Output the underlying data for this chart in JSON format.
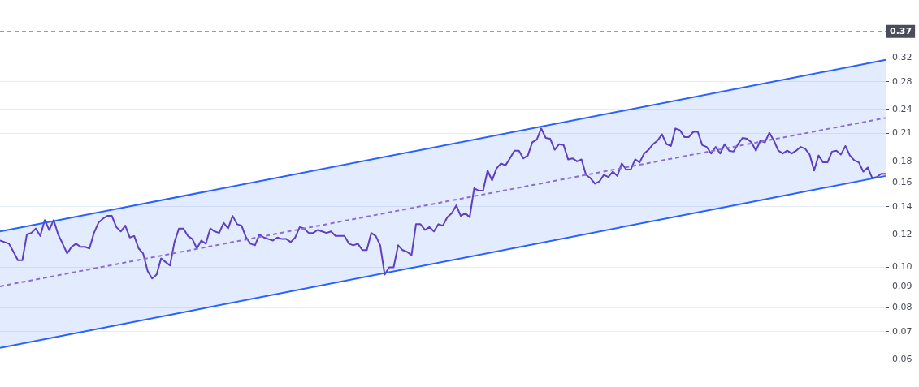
{
  "chart_data": {
    "type": "line",
    "log": "y",
    "grid": "y",
    "legend": false,
    "tick_labels": "y",
    "marker": "none",
    "categories": [
      null,
      null,
      null,
      null,
      null,
      null,
      null,
      null,
      null,
      null,
      null,
      null,
      null,
      null,
      null,
      null,
      null,
      null,
      null,
      null,
      null,
      null,
      null,
      null,
      null,
      null,
      null,
      null,
      null,
      null,
      null,
      null,
      null,
      null,
      null,
      null,
      null,
      null,
      null,
      null,
      null,
      null,
      null,
      null,
      null,
      null,
      null,
      null,
      null,
      null,
      null,
      null,
      null,
      null,
      null,
      null,
      null,
      null,
      null,
      null,
      null,
      null,
      null,
      null,
      null,
      null,
      null,
      null,
      null,
      null,
      null,
      null,
      null,
      null,
      null,
      null,
      null,
      null,
      null,
      null,
      null,
      null,
      null,
      null,
      null,
      null,
      null,
      null,
      null,
      null,
      null,
      null,
      null,
      null,
      null,
      null,
      null,
      null,
      null,
      null,
      null,
      null,
      null,
      null,
      null,
      null,
      null,
      null,
      null,
      null,
      null,
      null,
      null,
      null,
      null,
      null,
      null,
      null,
      null,
      null,
      null,
      null,
      null,
      null,
      null,
      null,
      null,
      null,
      null,
      null,
      null,
      null,
      null,
      null,
      null,
      null,
      null,
      null,
      null,
      null,
      null,
      null,
      null,
      null,
      null,
      null,
      null,
      null,
      null,
      null,
      null,
      null,
      null,
      null,
      null,
      null,
      null,
      null,
      null,
      null,
      null,
      null,
      null,
      null,
      null,
      null,
      null,
      null,
      null,
      null,
      null,
      null,
      null,
      null,
      null,
      null,
      null,
      null,
      null,
      null,
      null,
      null,
      null,
      null,
      null,
      null,
      null,
      null,
      null,
      null,
      null,
      null,
      null,
      null,
      null,
      null,
      null,
      null,
      null
    ],
    "ylim": [
      0.054,
      0.42
    ],
    "yticks": [
      0.06,
      0.07,
      0.08,
      0.09,
      {
        "value": 0.1,
        "label": "0.10"
      },
      0.12,
      0.14,
      0.16,
      0.18,
      0.21,
      0.24,
      0.28,
      0.32
    ],
    "ref_lines": [
      {
        "axis": "y",
        "value": 0.37,
        "label": "0.37",
        "color": "#787b86",
        "line_style": "dashed"
      }
    ],
    "series": [
      {
        "color": "#9c6fd0",
        "line_style": "dashed",
        "values": [
          0.09,
          null,
          null,
          null,
          null,
          null,
          null,
          null,
          null,
          null,
          null,
          null,
          null,
          null,
          null,
          null,
          null,
          null,
          null,
          null,
          null,
          null,
          null,
          null,
          null,
          null,
          null,
          null,
          null,
          null,
          null,
          null,
          null,
          null,
          null,
          null,
          null,
          null,
          null,
          null,
          null,
          null,
          null,
          null,
          null,
          null,
          null,
          null,
          null,
          null,
          null,
          null,
          null,
          null,
          null,
          null,
          null,
          null,
          null,
          null,
          null,
          null,
          null,
          null,
          null,
          null,
          null,
          null,
          null,
          null,
          null,
          null,
          null,
          null,
          null,
          null,
          null,
          null,
          null,
          null,
          null,
          null,
          null,
          null,
          null,
          null,
          null,
          null,
          null,
          null,
          null,
          null,
          null,
          null,
          null,
          null,
          null,
          null,
          null,
          null,
          null,
          null,
          null,
          null,
          null,
          null,
          null,
          null,
          null,
          null,
          null,
          null,
          null,
          null,
          null,
          null,
          null,
          null,
          null,
          null,
          null,
          null,
          null,
          null,
          null,
          null,
          null,
          null,
          null,
          null,
          null,
          null,
          null,
          null,
          null,
          null,
          null,
          null,
          null,
          null,
          null,
          null,
          null,
          null,
          null,
          null,
          null,
          null,
          null,
          null,
          null,
          null,
          null,
          null,
          null,
          null,
          null,
          null,
          null,
          null,
          null,
          null,
          null,
          null,
          null,
          null,
          null,
          null,
          null,
          null,
          null,
          null,
          null,
          null,
          null,
          null,
          null,
          null,
          null,
          null,
          null,
          null,
          null,
          null,
          null,
          null,
          null,
          null,
          null,
          null,
          null,
          null,
          null,
          null,
          null,
          null,
          null,
          null,
          0.229
        ],
        "lower": [
          0.064,
          null,
          null,
          null,
          null,
          null,
          null,
          null,
          null,
          null,
          null,
          null,
          null,
          null,
          null,
          null,
          null,
          null,
          null,
          null,
          null,
          null,
          null,
          null,
          null,
          null,
          null,
          null,
          null,
          null,
          null,
          null,
          null,
          null,
          null,
          null,
          null,
          null,
          null,
          null,
          null,
          null,
          null,
          null,
          null,
          null,
          null,
          null,
          null,
          null,
          null,
          null,
          null,
          null,
          null,
          null,
          null,
          null,
          null,
          null,
          null,
          null,
          null,
          null,
          null,
          null,
          null,
          null,
          null,
          null,
          null,
          null,
          null,
          null,
          null,
          null,
          null,
          null,
          null,
          null,
          null,
          null,
          null,
          null,
          null,
          null,
          null,
          null,
          null,
          null,
          null,
          null,
          null,
          null,
          null,
          null,
          null,
          null,
          null,
          null,
          null,
          null,
          null,
          null,
          null,
          null,
          null,
          null,
          null,
          null,
          null,
          null,
          null,
          null,
          null,
          null,
          null,
          null,
          null,
          null,
          null,
          null,
          null,
          null,
          null,
          null,
          null,
          null,
          null,
          null,
          null,
          null,
          null,
          null,
          null,
          null,
          null,
          null,
          null,
          null,
          null,
          null,
          null,
          null,
          null,
          null,
          null,
          null,
          null,
          null,
          null,
          null,
          null,
          null,
          null,
          null,
          null,
          null,
          null,
          null,
          null,
          null,
          null,
          null,
          null,
          null,
          null,
          null,
          null,
          null,
          null,
          null,
          null,
          null,
          null,
          null,
          null,
          null,
          null,
          null,
          null,
          null,
          null,
          null,
          null,
          null,
          null,
          null,
          null,
          null,
          null,
          null,
          null,
          null,
          null,
          null,
          null,
          null,
          0.166
        ],
        "upper": [
          0.122,
          null,
          null,
          null,
          null,
          null,
          null,
          null,
          null,
          null,
          null,
          null,
          null,
          null,
          null,
          null,
          null,
          null,
          null,
          null,
          null,
          null,
          null,
          null,
          null,
          null,
          null,
          null,
          null,
          null,
          null,
          null,
          null,
          null,
          null,
          null,
          null,
          null,
          null,
          null,
          null,
          null,
          null,
          null,
          null,
          null,
          null,
          null,
          null,
          null,
          null,
          null,
          null,
          null,
          null,
          null,
          null,
          null,
          null,
          null,
          null,
          null,
          null,
          null,
          null,
          null,
          null,
          null,
          null,
          null,
          null,
          null,
          null,
          null,
          null,
          null,
          null,
          null,
          null,
          null,
          null,
          null,
          null,
          null,
          null,
          null,
          null,
          null,
          null,
          null,
          null,
          null,
          null,
          null,
          null,
          null,
          null,
          null,
          null,
          null,
          null,
          null,
          null,
          null,
          null,
          null,
          null,
          null,
          null,
          null,
          null,
          null,
          null,
          null,
          null,
          null,
          null,
          null,
          null,
          null,
          null,
          null,
          null,
          null,
          null,
          null,
          null,
          null,
          null,
          null,
          null,
          null,
          null,
          null,
          null,
          null,
          null,
          null,
          null,
          null,
          null,
          null,
          null,
          null,
          null,
          null,
          null,
          null,
          null,
          null,
          null,
          null,
          null,
          null,
          null,
          null,
          null,
          null,
          null,
          null,
          null,
          null,
          null,
          null,
          null,
          null,
          null,
          null,
          null,
          null,
          null,
          null,
          null,
          null,
          null,
          null,
          null,
          null,
          null,
          null,
          null,
          null,
          null,
          null,
          null,
          null,
          null,
          null,
          null,
          null,
          null,
          null,
          null,
          null,
          null,
          null,
          null,
          null,
          0.316
        ]
      },
      {
        "color": "#2962ff",
        "line_style": "solid",
        "values": [
          0.122,
          null,
          null,
          null,
          null,
          null,
          null,
          null,
          null,
          null,
          null,
          null,
          null,
          null,
          null,
          null,
          null,
          null,
          null,
          null,
          null,
          null,
          null,
          null,
          null,
          null,
          null,
          null,
          null,
          null,
          null,
          null,
          null,
          null,
          null,
          null,
          null,
          null,
          null,
          null,
          null,
          null,
          null,
          null,
          null,
          null,
          null,
          null,
          null,
          null,
          null,
          null,
          null,
          null,
          null,
          null,
          null,
          null,
          null,
          null,
          null,
          null,
          null,
          null,
          null,
          null,
          null,
          null,
          null,
          null,
          null,
          null,
          null,
          null,
          null,
          null,
          null,
          null,
          null,
          null,
          null,
          null,
          null,
          null,
          null,
          null,
          null,
          null,
          null,
          null,
          null,
          null,
          null,
          null,
          null,
          null,
          null,
          null,
          null,
          null,
          null,
          null,
          null,
          null,
          null,
          null,
          null,
          null,
          null,
          null,
          null,
          null,
          null,
          null,
          null,
          null,
          null,
          null,
          null,
          null,
          null,
          null,
          null,
          null,
          null,
          null,
          null,
          null,
          null,
          null,
          null,
          null,
          null,
          null,
          null,
          null,
          null,
          null,
          null,
          null,
          null,
          null,
          null,
          null,
          null,
          null,
          null,
          null,
          null,
          null,
          null,
          null,
          null,
          null,
          null,
          null,
          null,
          null,
          null,
          null,
          null,
          null,
          null,
          null,
          null,
          null,
          null,
          null,
          null,
          null,
          null,
          null,
          null,
          null,
          null,
          null,
          null,
          null,
          null,
          null,
          null,
          null,
          null,
          null,
          null,
          null,
          null,
          null,
          null,
          null,
          null,
          null,
          null,
          null,
          null,
          null,
          null,
          null,
          0.316
        ]
      },
      {
        "color": "#2962ff",
        "line_style": "solid",
        "values": [
          0.064,
          null,
          null,
          null,
          null,
          null,
          null,
          null,
          null,
          null,
          null,
          null,
          null,
          null,
          null,
          null,
          null,
          null,
          null,
          null,
          null,
          null,
          null,
          null,
          null,
          null,
          null,
          null,
          null,
          null,
          null,
          null,
          null,
          null,
          null,
          null,
          null,
          null,
          null,
          null,
          null,
          null,
          null,
          null,
          null,
          null,
          null,
          null,
          null,
          null,
          null,
          null,
          null,
          null,
          null,
          null,
          null,
          null,
          null,
          null,
          null,
          null,
          null,
          null,
          null,
          null,
          null,
          null,
          null,
          null,
          null,
          null,
          null,
          null,
          null,
          null,
          null,
          null,
          null,
          null,
          null,
          null,
          null,
          null,
          null,
          null,
          null,
          null,
          null,
          null,
          null,
          null,
          null,
          null,
          null,
          null,
          null,
          null,
          null,
          null,
          null,
          null,
          null,
          null,
          null,
          null,
          null,
          null,
          null,
          null,
          null,
          null,
          null,
          null,
          null,
          null,
          null,
          null,
          null,
          null,
          null,
          null,
          null,
          null,
          null,
          null,
          null,
          null,
          null,
          null,
          null,
          null,
          null,
          null,
          null,
          null,
          null,
          null,
          null,
          null,
          null,
          null,
          null,
          null,
          null,
          null,
          null,
          null,
          null,
          null,
          null,
          null,
          null,
          null,
          null,
          null,
          null,
          null,
          null,
          null,
          null,
          null,
          null,
          null,
          null,
          null,
          null,
          null,
          null,
          null,
          null,
          null,
          null,
          null,
          null,
          null,
          null,
          null,
          null,
          null,
          null,
          null,
          null,
          null,
          null,
          null,
          null,
          null,
          null,
          null,
          null,
          null,
          null,
          null,
          null,
          null,
          null,
          null,
          0.166
        ]
      },
      {
        "color": "#673ab7",
        "line_style": "solid",
        "values": [
          0.116,
          0.115,
          0.114,
          0.109,
          0.104,
          0.104,
          0.12,
          0.121,
          0.124,
          0.119,
          0.13,
          0.123,
          0.13,
          0.12,
          0.114,
          0.108,
          0.112,
          0.114,
          0.112,
          0.112,
          0.111,
          0.121,
          0.128,
          0.131,
          0.133,
          0.133,
          0.125,
          0.122,
          0.126,
          0.118,
          0.119,
          0.111,
          0.108,
          0.098,
          0.094,
          0.096,
          0.105,
          0.103,
          0.101,
          0.115,
          0.124,
          0.124,
          0.119,
          0.117,
          0.111,
          0.116,
          0.114,
          0.124,
          0.122,
          0.121,
          0.128,
          0.124,
          0.133,
          0.127,
          0.126,
          0.118,
          0.114,
          0.113,
          0.12,
          0.118,
          0.117,
          0.116,
          0.118,
          0.117,
          0.117,
          0.115,
          0.118,
          0.125,
          0.124,
          0.121,
          0.121,
          0.123,
          0.122,
          0.121,
          0.122,
          0.119,
          0.119,
          0.119,
          0.114,
          0.113,
          0.114,
          0.11,
          0.11,
          0.121,
          0.119,
          0.113,
          0.096,
          0.1,
          0.1,
          0.113,
          0.11,
          0.109,
          0.107,
          0.127,
          0.127,
          0.123,
          0.125,
          0.122,
          0.127,
          0.126,
          0.132,
          0.135,
          0.141,
          0.133,
          0.135,
          0.132,
          0.155,
          0.153,
          0.153,
          0.171,
          0.162,
          0.173,
          0.178,
          0.176,
          0.183,
          0.191,
          0.191,
          0.183,
          0.186,
          0.2,
          0.203,
          0.216,
          0.205,
          0.204,
          0.192,
          0.198,
          0.197,
          0.182,
          0.183,
          0.18,
          0.182,
          0.167,
          0.164,
          0.159,
          0.161,
          0.167,
          0.165,
          0.17,
          0.166,
          0.178,
          0.172,
          0.172,
          0.182,
          0.179,
          0.188,
          0.192,
          0.198,
          0.202,
          0.209,
          0.198,
          0.196,
          0.216,
          0.214,
          0.206,
          0.206,
          0.212,
          0.212,
          0.197,
          0.195,
          0.188,
          0.195,
          0.188,
          0.198,
          0.191,
          0.19,
          0.198,
          0.205,
          0.204,
          0.2,
          0.191,
          0.202,
          0.2,
          0.211,
          0.202,
          0.191,
          0.188,
          0.191,
          0.188,
          0.191,
          0.195,
          0.193,
          0.187,
          0.171,
          0.186,
          0.179,
          0.179,
          0.19,
          0.191,
          0.187,
          0.196,
          0.186,
          0.181,
          0.179,
          0.17,
          0.174,
          0.164,
          0.165,
          0.168,
          0.168
        ]
      }
    ]
  }
}
